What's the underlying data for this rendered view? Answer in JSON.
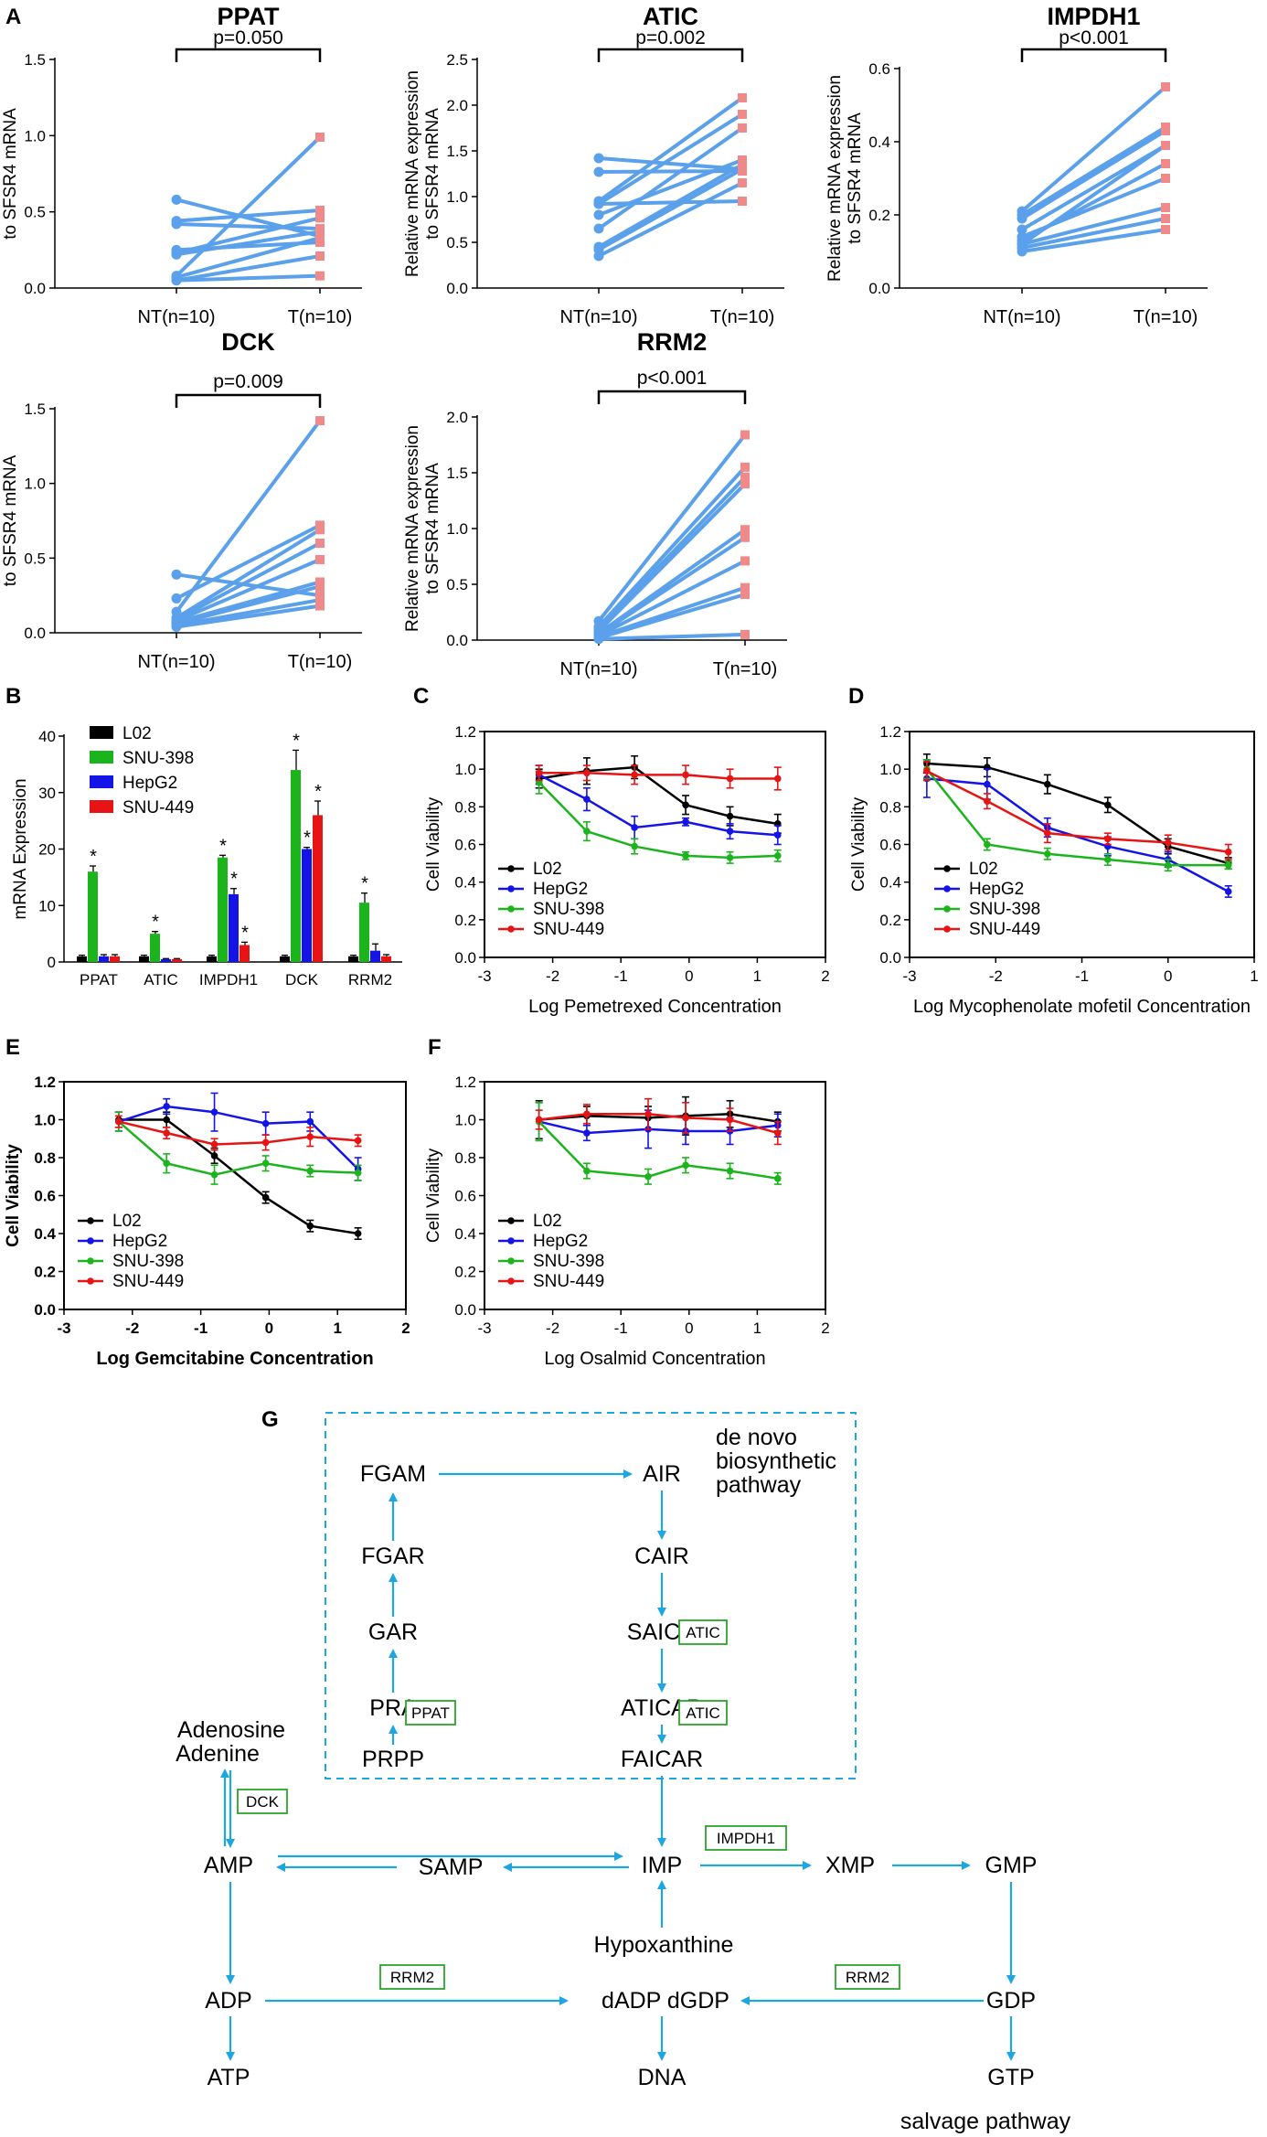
{
  "panel_letters": {
    "A": "A",
    "B": "B",
    "C": "C",
    "D": "D",
    "E": "E",
    "F": "F",
    "G": "G"
  },
  "paired_ylabel": [
    "Relative mRNA expression",
    "to SFSR4 mRNA"
  ],
  "paired_xcats": [
    "NT(n=10)",
    "T(n=10)"
  ],
  "colors": {
    "paired_line": "#5aa0ea",
    "paired_T": "#f08a8a",
    "L02": "#000000",
    "SNU-398": "#1cb41c",
    "HepG2": "#1414e6",
    "SNU-449": "#e61414",
    "pathway": "#1ea6e0",
    "enzyme_box": "#2aa52a"
  },
  "chart_data": [
    {
      "id": "PPAT",
      "type": "line",
      "title": "PPAT",
      "pvalue": "p=0.050",
      "categories": [
        "NT(n=10)",
        "T(n=10)"
      ],
      "ylim": [
        0,
        1.5
      ],
      "yticks": [
        "0.0",
        "0.5",
        "1.0",
        "1.5"
      ],
      "pairs": [
        [
          0.58,
          0.34
        ],
        [
          0.44,
          0.51
        ],
        [
          0.42,
          0.39
        ],
        [
          0.25,
          0.3
        ],
        [
          0.23,
          0.46
        ],
        [
          0.22,
          0.37
        ],
        [
          0.08,
          0.99
        ],
        [
          0.07,
          0.33
        ],
        [
          0.05,
          0.21
        ],
        [
          0.05,
          0.08
        ]
      ]
    },
    {
      "id": "ATIC",
      "type": "line",
      "title": "ATIC",
      "pvalue": "p=0.002",
      "categories": [
        "NT(n=10)",
        "T(n=10)"
      ],
      "ylim": [
        0,
        2.5
      ],
      "yticks": [
        "0.0",
        "0.5",
        "1.0",
        "1.5",
        "2.0",
        "2.5"
      ],
      "pairs": [
        [
          1.42,
          1.3
        ],
        [
          1.27,
          1.28
        ],
        [
          0.95,
          2.08
        ],
        [
          0.92,
          1.9
        ],
        [
          0.8,
          1.4
        ],
        [
          0.65,
          1.75
        ],
        [
          0.45,
          1.35
        ],
        [
          0.42,
          1.3
        ],
        [
          0.35,
          1.15
        ],
        [
          0.92,
          0.95
        ]
      ]
    },
    {
      "id": "IMPDH1",
      "type": "line",
      "title": "IMPDH1",
      "pvalue": "p<0.001",
      "categories": [
        "NT(n=10)",
        "T(n=10)"
      ],
      "ylim": [
        0,
        0.6
      ],
      "yticks": [
        "0.0",
        "0.2",
        "0.4",
        "0.6"
      ],
      "pairs": [
        [
          0.21,
          0.55
        ],
        [
          0.2,
          0.44
        ],
        [
          0.19,
          0.43
        ],
        [
          0.16,
          0.39
        ],
        [
          0.14,
          0.3
        ],
        [
          0.13,
          0.34
        ],
        [
          0.12,
          0.22
        ],
        [
          0.11,
          0.19
        ],
        [
          0.1,
          0.16
        ],
        [
          0.12,
          0.39
        ]
      ]
    },
    {
      "id": "DCK",
      "type": "line",
      "title": "DCK",
      "pvalue": "p=0.009",
      "categories": [
        "NT(n=10)",
        "T(n=10)"
      ],
      "ylim": [
        0,
        1.5
      ],
      "yticks": [
        "0.0",
        "0.5",
        "1.0",
        "1.5"
      ],
      "pairs": [
        [
          0.39,
          0.25
        ],
        [
          0.23,
          0.72
        ],
        [
          0.14,
          1.42
        ],
        [
          0.1,
          0.69
        ],
        [
          0.09,
          0.6
        ],
        [
          0.08,
          0.49
        ],
        [
          0.07,
          0.34
        ],
        [
          0.06,
          0.31
        ],
        [
          0.05,
          0.22
        ],
        [
          0.04,
          0.18
        ]
      ]
    },
    {
      "id": "RRM2",
      "type": "line",
      "title": "RRM2",
      "pvalue": "p<0.001",
      "categories": [
        "NT(n=10)",
        "T(n=10)"
      ],
      "ylim": [
        0,
        2.0
      ],
      "yticks": [
        "0.0",
        "0.5",
        "1.0",
        "1.5",
        "2.0"
      ],
      "pairs": [
        [
          0.17,
          1.84
        ],
        [
          0.12,
          1.55
        ],
        [
          0.1,
          1.46
        ],
        [
          0.08,
          1.4
        ],
        [
          0.06,
          0.99
        ],
        [
          0.05,
          0.92
        ],
        [
          0.04,
          0.71
        ],
        [
          0.03,
          0.47
        ],
        [
          0.02,
          0.41
        ],
        [
          0.01,
          0.05
        ]
      ]
    },
    {
      "id": "B",
      "type": "bar",
      "ylabel": "mRNA Expression",
      "ylim": [
        0,
        40
      ],
      "yticks": [
        "0",
        "10",
        "20",
        "30",
        "40"
      ],
      "categories": [
        "PPAT",
        "ATIC",
        "IMPDH1",
        "DCK",
        "RRM2"
      ],
      "series": [
        {
          "name": "L02",
          "values": [
            1.0,
            1.0,
            1.0,
            1.0,
            1.0
          ],
          "err": [
            0.2,
            0.2,
            0.2,
            0.2,
            0.2
          ]
        },
        {
          "name": "SNU-398",
          "values": [
            16.0,
            5.0,
            18.5,
            34.0,
            10.5
          ],
          "err": [
            1.0,
            0.4,
            0.4,
            3.5,
            1.7
          ]
        },
        {
          "name": "HepG2",
          "values": [
            1.0,
            0.5,
            12.0,
            20.0,
            2.0
          ],
          "err": [
            0.3,
            0.1,
            1.0,
            0.3,
            1.2
          ]
        },
        {
          "name": "SNU-449",
          "values": [
            1.0,
            0.5,
            3.0,
            26.0,
            1.0
          ],
          "err": [
            0.3,
            0.1,
            0.5,
            2.5,
            0.3
          ]
        }
      ],
      "stars": [
        "*",
        "*",
        "*",
        "*",
        "*",
        "*",
        "*",
        "*",
        "*"
      ]
    },
    {
      "id": "C",
      "type": "line",
      "xlabel": "Log Pemetrexed Concentration",
      "ylabel": "Cell Viability",
      "xlim": [
        -3,
        2
      ],
      "ylim": [
        0,
        1.2
      ],
      "xticks": [
        "-3",
        "-2",
        "-1",
        "0",
        "1",
        "2"
      ],
      "yticks": [
        "0.0",
        "0.2",
        "0.4",
        "0.6",
        "0.8",
        "1.0",
        "1.2"
      ],
      "x": [
        -2.2,
        -1.5,
        -0.8,
        -0.05,
        0.6,
        1.3
      ],
      "series": [
        {
          "name": "L02",
          "values": [
            0.95,
            0.99,
            1.01,
            0.81,
            0.75,
            0.71
          ],
          "err": [
            0.05,
            0.07,
            0.06,
            0.05,
            0.05,
            0.05
          ]
        },
        {
          "name": "HepG2",
          "values": [
            0.97,
            0.84,
            0.69,
            0.72,
            0.67,
            0.65
          ],
          "err": [
            0.05,
            0.06,
            0.06,
            0.02,
            0.04,
            0.05
          ]
        },
        {
          "name": "SNU-398",
          "values": [
            0.93,
            0.67,
            0.59,
            0.54,
            0.53,
            0.54
          ],
          "err": [
            0.06,
            0.05,
            0.04,
            0.02,
            0.03,
            0.03
          ]
        },
        {
          "name": "SNU-449",
          "values": [
            0.98,
            0.98,
            0.97,
            0.97,
            0.95,
            0.95
          ],
          "err": [
            0.04,
            0.04,
            0.05,
            0.05,
            0.05,
            0.06
          ]
        }
      ]
    },
    {
      "id": "D",
      "type": "line",
      "xlabel": "Log Mycophenolate mofetil Concentration",
      "ylabel": "Cell Viability",
      "xlim": [
        -3,
        1
      ],
      "ylim": [
        0,
        1.2
      ],
      "xticks": [
        "-3",
        "-2",
        "-1",
        "0",
        "1"
      ],
      "yticks": [
        "0.0",
        "0.2",
        "0.4",
        "0.6",
        "0.8",
        "1.0",
        "1.2"
      ],
      "x": [
        -2.8,
        -2.1,
        -1.4,
        -0.7,
        0.0,
        0.7
      ],
      "series": [
        {
          "name": "L02",
          "values": [
            1.03,
            1.01,
            0.92,
            0.81,
            0.59,
            0.5
          ],
          "err": [
            0.05,
            0.05,
            0.05,
            0.04,
            0.04,
            0.03
          ]
        },
        {
          "name": "HepG2",
          "values": [
            0.95,
            0.92,
            0.69,
            0.59,
            0.52,
            0.35
          ],
          "err": [
            0.1,
            0.08,
            0.05,
            0.05,
            0.04,
            0.03
          ]
        },
        {
          "name": "SNU-398",
          "values": [
            1.0,
            0.6,
            0.55,
            0.52,
            0.49,
            0.49
          ],
          "err": [
            0.05,
            0.03,
            0.03,
            0.03,
            0.03,
            0.02
          ]
        },
        {
          "name": "SNU-449",
          "values": [
            0.99,
            0.83,
            0.66,
            0.63,
            0.61,
            0.56
          ],
          "err": [
            0.05,
            0.04,
            0.05,
            0.03,
            0.04,
            0.04
          ]
        }
      ]
    },
    {
      "id": "E",
      "type": "line",
      "xlabel": "Log Gemcitabine Concentration",
      "ylabel": "Cell Viability",
      "xlim": [
        -3,
        2
      ],
      "ylim": [
        0,
        1.2
      ],
      "xticks": [
        "-3",
        "-2",
        "-1",
        "0",
        "1",
        "2"
      ],
      "yticks": [
        "0.0",
        "0.2",
        "0.4",
        "0.6",
        "0.8",
        "1.0",
        "1.2"
      ],
      "x": [
        -2.2,
        -1.5,
        -0.8,
        -0.05,
        0.6,
        1.3
      ],
      "series": [
        {
          "name": "L02",
          "values": [
            1.0,
            1.0,
            0.81,
            0.59,
            0.44,
            0.4
          ],
          "err": [
            0.04,
            0.04,
            0.04,
            0.03,
            0.03,
            0.03
          ]
        },
        {
          "name": "HepG2",
          "values": [
            0.99,
            1.07,
            1.04,
            0.98,
            0.99,
            0.74
          ],
          "err": [
            0.05,
            0.04,
            0.1,
            0.06,
            0.05,
            0.06
          ]
        },
        {
          "name": "SNU-398",
          "values": [
            0.99,
            0.77,
            0.71,
            0.77,
            0.73,
            0.72
          ],
          "err": [
            0.05,
            0.05,
            0.05,
            0.04,
            0.03,
            0.04
          ]
        },
        {
          "name": "SNU-449",
          "values": [
            0.99,
            0.93,
            0.87,
            0.88,
            0.91,
            0.89
          ],
          "err": [
            0.03,
            0.03,
            0.03,
            0.04,
            0.05,
            0.03
          ]
        }
      ]
    },
    {
      "id": "F",
      "type": "line",
      "xlabel": "Log Osalmid Concentration",
      "ylabel": "Cell Viability",
      "xlim": [
        -3,
        2
      ],
      "ylim": [
        0,
        1.2
      ],
      "xticks": [
        "-3",
        "-2",
        "-1",
        "0",
        "1",
        "2"
      ],
      "yticks": [
        "0.0",
        "0.2",
        "0.4",
        "0.6",
        "0.8",
        "1.0",
        "1.2"
      ],
      "x": [
        -2.2,
        -1.5,
        -0.6,
        -0.05,
        0.6,
        1.3
      ],
      "series": [
        {
          "name": "L02",
          "values": [
            1.0,
            1.02,
            1.01,
            1.02,
            1.03,
            0.99
          ],
          "err": [
            0.1,
            0.05,
            0.06,
            0.1,
            0.07,
            0.05
          ]
        },
        {
          "name": "HepG2",
          "values": [
            0.99,
            0.93,
            0.95,
            0.94,
            0.94,
            0.97
          ],
          "err": [
            0.1,
            0.04,
            0.1,
            0.07,
            0.07,
            0.06
          ]
        },
        {
          "name": "SNU-398",
          "values": [
            0.99,
            0.73,
            0.7,
            0.76,
            0.73,
            0.69
          ],
          "err": [
            0.1,
            0.04,
            0.04,
            0.04,
            0.04,
            0.03
          ]
        },
        {
          "name": "SNU-449",
          "values": [
            1.0,
            1.03,
            1.03,
            1.01,
            1.0,
            0.93
          ],
          "err": [
            0.05,
            0.05,
            0.08,
            0.08,
            0.06,
            0.06
          ]
        }
      ]
    }
  ],
  "pathway": {
    "region_label": [
      "de novo",
      "biosynthetic",
      "pathway"
    ],
    "salvage_label": "salvage pathway",
    "nodes": {
      "FGAM": "FGAM",
      "AIR": "AIR",
      "FGAR": "FGAR",
      "CAIR": "CAIR",
      "GAR": "GAR",
      "SAICR": "SAICR",
      "PRA": "PRA",
      "ATICAR": "ATICAR",
      "PRPP": "PRPP",
      "FAICAR": "FAICAR",
      "Adenosine": "Adenosine",
      "Adenine": "Adenine",
      "AMP": "AMP",
      "SAMP": "SAMP",
      "IMP": "IMP",
      "XMP": "XMP",
      "GMP": "GMP",
      "Hypoxanthine": "Hypoxanthine",
      "ADP": "ADP",
      "dADPdGDP": "dADP dGDP",
      "GDP": "GDP",
      "ATP": "ATP",
      "DNA": "DNA",
      "GTP": "GTP"
    },
    "enzymes": {
      "ATIC1": "ATIC",
      "ATIC2": "ATIC",
      "PPAT": "PPAT",
      "DCK": "DCK",
      "IMPDH1": "IMPDH1",
      "RRM2a": "RRM2",
      "RRM2b": "RRM2"
    }
  }
}
